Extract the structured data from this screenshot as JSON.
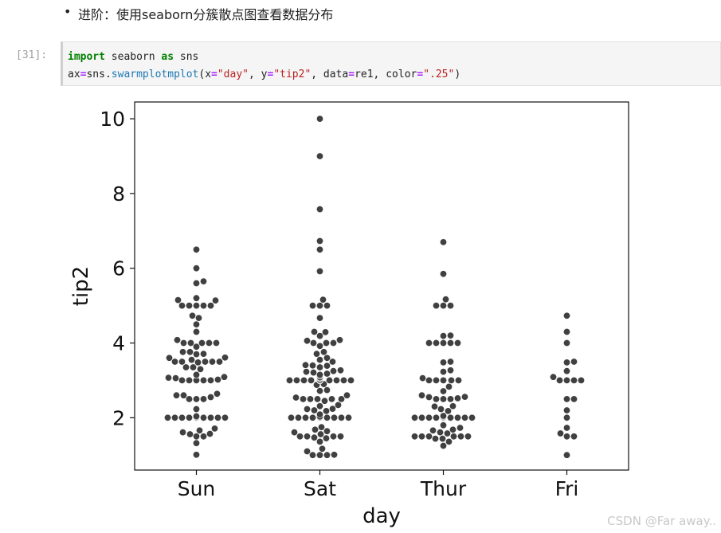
{
  "notebook": {
    "bullet_text": "进阶：使用seaborn分簇散点图查看数据分布",
    "prompt": "[31]:",
    "code": {
      "kw_import": "import",
      "module": " seaborn ",
      "kw_as": "as",
      "alias": " sns",
      "l2_var": "ax",
      "l2_eq1": "=",
      "l2_obj": "sns.",
      "l2_fn": "swarmplotmplot",
      "l2_open": "(x",
      "l2_eq2": "=",
      "l2_s1": "\"day\"",
      "l2_mid1": ", y",
      "l2_eq3": "=",
      "l2_s2": "\"tip2\"",
      "l2_mid2": ", data",
      "l2_eq4": "=",
      "l2_mid3": "re1, color",
      "l2_eq5": "=",
      "l2_s3": "\".25\"",
      "l2_close": ")"
    },
    "watermark": "CSDN @Far away.."
  },
  "chart_data": {
    "type": "scatter",
    "xlabel": "day",
    "ylabel": "tip2",
    "categories": [
      "Sun",
      "Sat",
      "Thur",
      "Fri"
    ],
    "ylim": [
      0.6,
      10.45
    ],
    "yticks": [
      2,
      4,
      6,
      8,
      10
    ],
    "grid": false,
    "point_color": "#404040",
    "series": [
      {
        "category": "Sun",
        "values": [
          1.01,
          1.32,
          1.5,
          1.5,
          1.56,
          1.57,
          1.61,
          1.66,
          1.71,
          2,
          2,
          2,
          2,
          2,
          2,
          2,
          2,
          2,
          2,
          2,
          2,
          2,
          2,
          2,
          2,
          2,
          2.02,
          2.04,
          2.23,
          2.5,
          2.5,
          2.5,
          2.55,
          2.6,
          2.6,
          2.64,
          3,
          3,
          3,
          3,
          3,
          3.02,
          3.06,
          3.07,
          3.09,
          3.15,
          3.3,
          3.35,
          3.35,
          3.48,
          3.5,
          3.5,
          3.5,
          3.5,
          3.5,
          3.55,
          3.6,
          3.61,
          3.7,
          3.71,
          3.76,
          3.76,
          3.9,
          4,
          4,
          4,
          4,
          4,
          4.08,
          4.3,
          4.5,
          4.67,
          4.73,
          5,
          5,
          5,
          5,
          5,
          5.14,
          5.15,
          5.2,
          5.6,
          5.65,
          6,
          6.5
        ]
      },
      {
        "category": "Sat",
        "values": [
          1,
          1,
          1,
          1.01,
          1.1,
          1.17,
          1.36,
          1.45,
          1.47,
          1.5,
          1.5,
          1.5,
          1.5,
          1.56,
          1.61,
          1.64,
          1.68,
          1.75,
          2,
          2,
          2,
          2,
          2,
          2,
          2,
          2,
          2,
          2,
          2,
          2,
          2,
          2,
          2,
          2,
          2,
          2,
          2,
          2,
          2,
          2,
          2.01,
          2.03,
          2.09,
          2.18,
          2.2,
          2.23,
          2.24,
          2.31,
          2.34,
          2.45,
          2.5,
          2.5,
          2.5,
          2.5,
          2.5,
          2.54,
          2.6,
          2.72,
          2.74,
          2.88,
          2.9,
          3,
          3,
          3,
          3,
          3,
          3,
          3,
          3,
          3,
          3,
          3,
          3,
          3,
          3.02,
          3.06,
          3.07,
          3.08,
          3.12,
          3.15,
          3.18,
          3.21,
          3.23,
          3.25,
          3.27,
          3.35,
          3.39,
          3.4,
          3.41,
          3.5,
          3.55,
          3.6,
          3.71,
          3.76,
          3.92,
          4,
          4,
          4,
          4.06,
          4.08,
          4.19,
          4.29,
          4.3,
          4.67,
          5,
          5,
          5,
          5.16,
          5.92,
          6.5,
          6.73,
          7.58,
          9,
          10
        ]
      },
      {
        "category": "Thur",
        "values": [
          1.25,
          1.36,
          1.44,
          1.44,
          1.5,
          1.5,
          1.5,
          1.5,
          1.5,
          1.5,
          1.58,
          1.61,
          1.66,
          1.68,
          1.73,
          1.8,
          2,
          2,
          2,
          2,
          2,
          2,
          2,
          2,
          2,
          2,
          2,
          2,
          2,
          2,
          2,
          2,
          2,
          2,
          2,
          2.01,
          2.03,
          2.05,
          2.18,
          2.23,
          2.3,
          2.31,
          2.5,
          2.5,
          2.5,
          2.52,
          2.55,
          2.56,
          2.6,
          2.71,
          2.83,
          3,
          3,
          3,
          3,
          3,
          3.06,
          3.23,
          3.27,
          3.48,
          3.5,
          4,
          4,
          4,
          4,
          4,
          4.19,
          4.2,
          5,
          5,
          5,
          5.17,
          5.85,
          6.7
        ]
      },
      {
        "category": "Fri",
        "values": [
          1,
          1.5,
          1.5,
          1.58,
          1.73,
          2,
          2.2,
          2.5,
          2.5,
          3,
          3,
          3,
          3,
          3.09,
          3.25,
          3.48,
          3.5,
          4,
          4.3,
          4.73
        ]
      }
    ]
  }
}
